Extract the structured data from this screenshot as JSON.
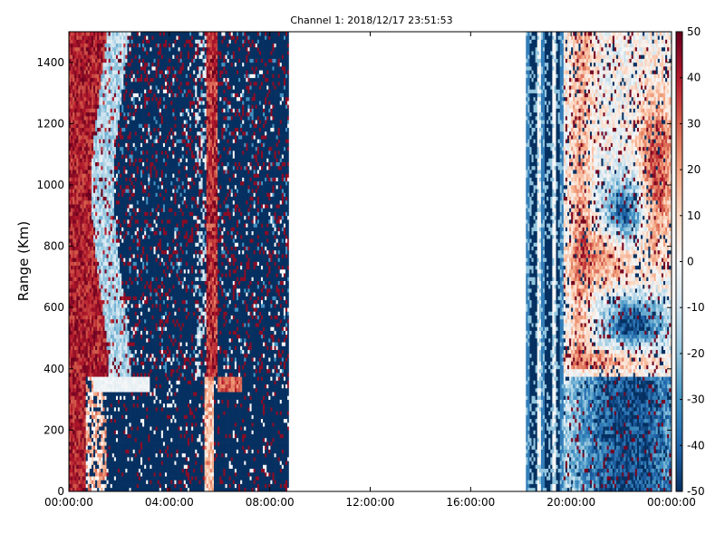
{
  "chart_data": {
    "type": "heatmap",
    "title": "Channel 1: 2018/12/17 23:51:53",
    "xlabel": "",
    "ylabel": "Range (Km)",
    "x_ticks": [
      "00:00:00",
      "04:00:00",
      "08:00:00",
      "12:00:00",
      "16:00:00",
      "20:00:00",
      "00:00:00"
    ],
    "y_ticks": [
      0,
      200,
      400,
      600,
      800,
      1000,
      1200,
      1400
    ],
    "ylim": [
      0,
      1500
    ],
    "xlim_hours": [
      0,
      24
    ],
    "data_time_spans_hours": [
      [
        0,
        8.75
      ],
      [
        18.2,
        24
      ]
    ],
    "colorbar": {
      "colormap": "RdBu_r",
      "range": [
        -50,
        50
      ],
      "ticks": [
        50,
        40,
        30,
        20,
        10,
        0,
        -10,
        -20,
        -30,
        -40,
        -50
      ]
    },
    "grid": false
  }
}
